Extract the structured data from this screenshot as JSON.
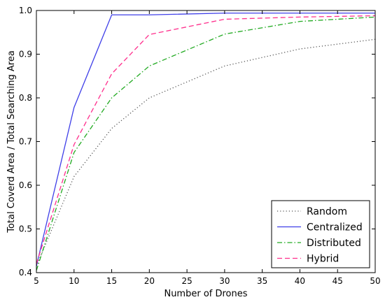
{
  "chart_data": {
    "type": "line",
    "title": "",
    "xlabel": "Number of Drones",
    "ylabel": "Total Coverd Area / Total Searching Area",
    "xlim": [
      5,
      50
    ],
    "ylim": [
      0.4,
      1.0
    ],
    "xticks": [
      5,
      10,
      15,
      20,
      25,
      30,
      35,
      40,
      45,
      50
    ],
    "yticks": [
      0.4,
      0.5,
      0.6,
      0.7,
      0.8,
      0.9,
      1.0
    ],
    "x": [
      5,
      10,
      15,
      20,
      30,
      40,
      50
    ],
    "grid": false,
    "legend_position": "lower-right",
    "series": [
      {
        "name": "Random",
        "color": "#555555",
        "style": "dotted",
        "values": [
          0.415,
          0.62,
          0.73,
          0.8,
          0.873,
          0.912,
          0.934
        ]
      },
      {
        "name": "Centralized",
        "color": "#3f3fe8",
        "style": "solid",
        "values": [
          0.415,
          0.778,
          0.99,
          0.99,
          0.994,
          0.994,
          0.994
        ]
      },
      {
        "name": "Distributed",
        "color": "#22aa22",
        "style": "dashdot",
        "values": [
          0.405,
          0.675,
          0.8,
          0.873,
          0.946,
          0.975,
          0.985
        ]
      },
      {
        "name": "Hybrid",
        "color": "#ff2e8c",
        "style": "dashed",
        "values": [
          0.42,
          0.693,
          0.855,
          0.945,
          0.98,
          0.985,
          0.988
        ]
      }
    ]
  }
}
